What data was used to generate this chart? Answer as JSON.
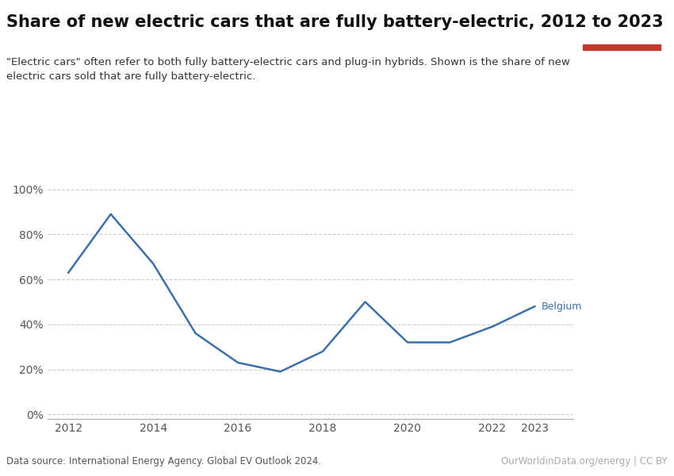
{
  "title": "Share of new electric cars that are fully battery-electric, 2012 to 2023",
  "subtitle": "\"Electric cars\" often refer to both fully battery-electric cars and plug-in hybrids. Shown is the share of new\nelectric cars sold that are fully battery-electric.",
  "data_source": "Data source: International Energy Agency. Global EV Outlook 2024.",
  "credit": "OurWorldinData.org/energy | CC BY",
  "country_label": "Belgium",
  "years": [
    2012,
    2013,
    2014,
    2015,
    2016,
    2017,
    2018,
    2019,
    2020,
    2021,
    2022,
    2023
  ],
  "values": [
    0.63,
    0.89,
    0.67,
    0.36,
    0.23,
    0.19,
    0.28,
    0.5,
    0.32,
    0.32,
    0.39,
    0.48
  ],
  "line_color": "#3d6fa8",
  "background_color": "#ffffff",
  "grid_color": "#cccccc",
  "yticks": [
    0.0,
    0.2,
    0.4,
    0.6,
    0.8,
    1.0
  ],
  "ytick_labels": [
    "0%",
    "20%",
    "40%",
    "60%",
    "80%",
    "100%"
  ],
  "xlim": [
    2011.5,
    2023.9
  ],
  "ylim": [
    -0.02,
    1.08
  ],
  "owid_box_color": "#1a3a5c",
  "owid_box_red": "#c0392b",
  "title_fontsize": 15,
  "subtitle_fontsize": 9.5,
  "axis_fontsize": 10,
  "label_fontsize": 9
}
